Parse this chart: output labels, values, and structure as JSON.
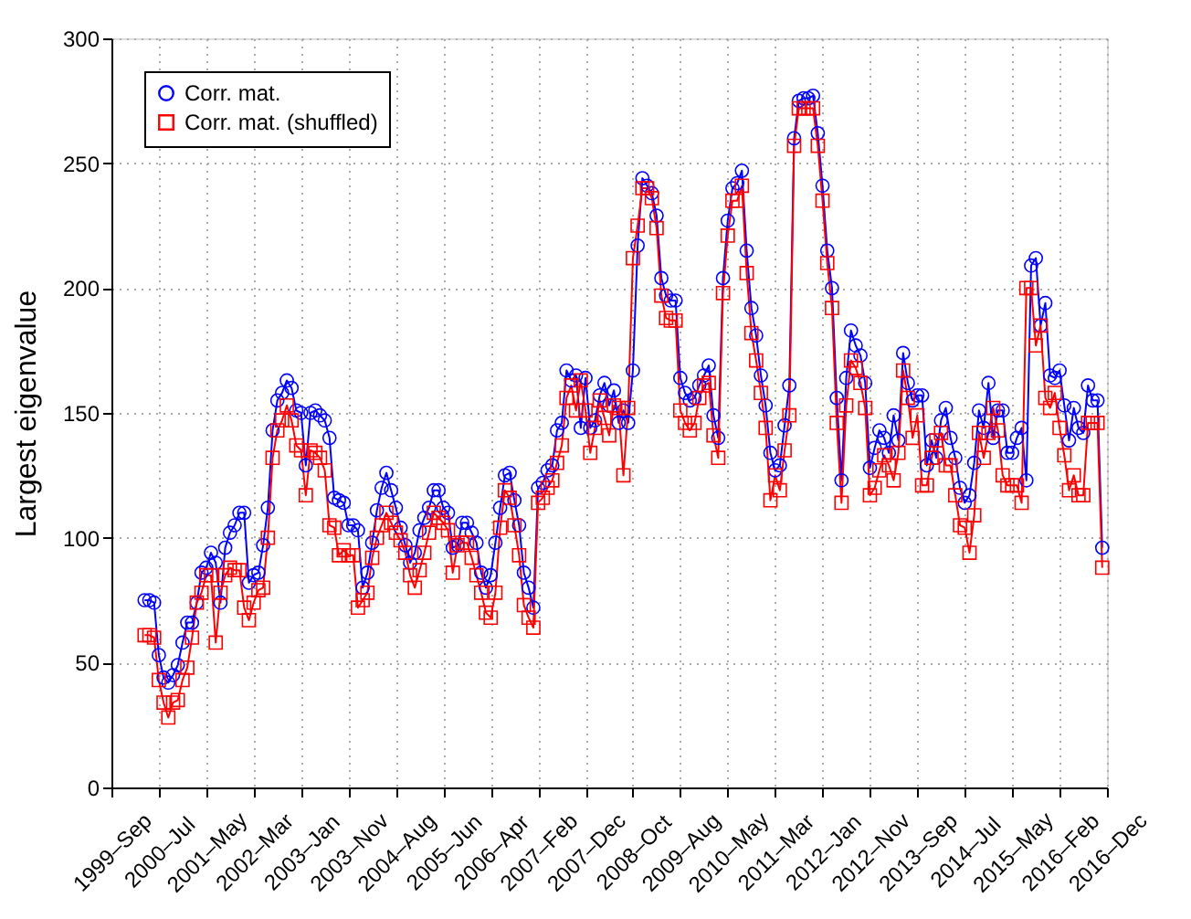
{
  "chart_data": {
    "type": "line",
    "ylabel": "Largest eigenvalue",
    "categories": [
      "1999–Sep",
      null,
      null,
      null,
      null,
      null,
      null,
      null,
      null,
      null,
      "2000–Jul",
      null,
      null,
      null,
      null,
      null,
      null,
      null,
      null,
      null,
      "2001–May",
      null,
      null,
      null,
      null,
      null,
      null,
      null,
      null,
      null,
      "2002–Mar",
      null,
      null,
      null,
      null,
      null,
      null,
      null,
      null,
      null,
      "2003–Jan",
      null,
      null,
      null,
      null,
      null,
      null,
      null,
      null,
      null,
      "2003–Nov",
      null,
      null,
      null,
      null,
      null,
      null,
      null,
      null,
      null,
      "2004–Aug",
      null,
      null,
      null,
      null,
      null,
      null,
      null,
      null,
      null,
      "2005–Jun",
      null,
      null,
      null,
      null,
      null,
      null,
      null,
      null,
      null,
      "2006–Apr",
      null,
      null,
      null,
      null,
      null,
      null,
      null,
      null,
      null,
      "2007–Feb",
      null,
      null,
      null,
      null,
      null,
      null,
      null,
      null,
      null,
      "2007–Dec",
      null,
      null,
      null,
      null,
      null,
      null,
      null,
      null,
      null,
      "2008–Oct",
      null,
      null,
      null,
      null,
      null,
      null,
      null,
      null,
      null,
      "2009–Aug",
      null,
      null,
      null,
      null,
      null,
      null,
      null,
      null,
      null,
      "2010–May",
      null,
      null,
      null,
      null,
      null,
      null,
      null,
      null,
      null,
      "2011–Mar",
      null,
      null,
      null,
      null,
      null,
      null,
      null,
      null,
      null,
      "2012–Jan",
      null,
      null,
      null,
      null,
      null,
      null,
      null,
      null,
      null,
      "2012–Nov",
      null,
      null,
      null,
      null,
      null,
      null,
      null,
      null,
      null,
      "2013–Sep",
      null,
      null,
      null,
      null,
      null,
      null,
      null,
      null,
      null,
      "2014–Jul",
      null,
      null,
      null,
      null,
      null,
      null,
      null,
      null,
      null,
      "2015–May",
      null,
      null,
      null,
      null,
      null,
      null,
      null,
      null,
      null,
      "2016–Feb",
      null,
      null,
      null,
      null,
      null,
      null,
      null,
      null,
      null,
      "2016–Dec"
    ],
    "series": [
      {
        "name": "Corr. mat.",
        "color": "#0000ff",
        "marker": "circle",
        "values": [
          null,
          null,
          null,
          null,
          null,
          null,
          null,
          75,
          75,
          74,
          53,
          44,
          42,
          45,
          49,
          58,
          66,
          66,
          74,
          86,
          88,
          94,
          90,
          74,
          96,
          102,
          105,
          110,
          110,
          82,
          85,
          86,
          97,
          112,
          143,
          155,
          158,
          163,
          160,
          151,
          150,
          129,
          150,
          151,
          149,
          147,
          140,
          116,
          115,
          114,
          105,
          105,
          103,
          80,
          86,
          98,
          111,
          120,
          126,
          119,
          112,
          104,
          97,
          90,
          94,
          103,
          108,
          112,
          119,
          119,
          112,
          110,
          96,
          97,
          106,
          106,
          102,
          98,
          86,
          80,
          85,
          98,
          112,
          125,
          126,
          115,
          105,
          86,
          80,
          72,
          120,
          122,
          127,
          129,
          143,
          146,
          167,
          163,
          165,
          144,
          164,
          144,
          147,
          157,
          162,
          153,
          159,
          146,
          151,
          146,
          167,
          217,
          244,
          241,
          238,
          229,
          204,
          197,
          195,
          195,
          164,
          158,
          155,
          156,
          161,
          165,
          169,
          149,
          140,
          204,
          227,
          240,
          242,
          247,
          215,
          192,
          181,
          165,
          153,
          134,
          127,
          129,
          145,
          161,
          260,
          275,
          276,
          276,
          277,
          262,
          241,
          215,
          200,
          156,
          123,
          164,
          183,
          177,
          173,
          162,
          128,
          136,
          143,
          140,
          134,
          149,
          139,
          174,
          162,
          155,
          157,
          157,
          129,
          139,
          132,
          147,
          152,
          140,
          132,
          120,
          114,
          117,
          130,
          151,
          144,
          162,
          140,
          151,
          151,
          134,
          134,
          140,
          144,
          123,
          209,
          212,
          185,
          194,
          165,
          164,
          167,
          153,
          139,
          152,
          144,
          142,
          161,
          155,
          155,
          96,
          null
        ]
      },
      {
        "name": "Corr. mat. (shuffled)",
        "color": "#ff0000",
        "marker": "square",
        "values": [
          null,
          null,
          null,
          null,
          null,
          null,
          null,
          61,
          61,
          60,
          43,
          34,
          28,
          34,
          35,
          43,
          48,
          60,
          74,
          78,
          85,
          85,
          58,
          78,
          85,
          88,
          87,
          87,
          72,
          67,
          74,
          79,
          80,
          100,
          132,
          143,
          147,
          153,
          147,
          137,
          135,
          117,
          135,
          134,
          132,
          127,
          105,
          104,
          93,
          95,
          93,
          93,
          72,
          75,
          78,
          92,
          100,
          105,
          110,
          106,
          102,
          99,
          94,
          85,
          80,
          87,
          94,
          102,
          110,
          108,
          106,
          103,
          86,
          97,
          98,
          98,
          92,
          85,
          78,
          70,
          68,
          78,
          104,
          119,
          116,
          105,
          93,
          73,
          68,
          64,
          114,
          116,
          120,
          123,
          130,
          137,
          156,
          161,
          151,
          163,
          151,
          134,
          144,
          155,
          148,
          141,
          153,
          152,
          125,
          152,
          212,
          225,
          240,
          240,
          236,
          224,
          197,
          188,
          187,
          187,
          151,
          146,
          143,
          146,
          156,
          161,
          162,
          141,
          132,
          198,
          221,
          235,
          235,
          241,
          206,
          182,
          171,
          158,
          144,
          115,
          125,
          119,
          135,
          149,
          257,
          272,
          272,
          272,
          272,
          257,
          235,
          210,
          192,
          146,
          114,
          153,
          171,
          168,
          162,
          152,
          117,
          120,
          127,
          133,
          129,
          123,
          134,
          167,
          156,
          140,
          149,
          121,
          121,
          132,
          139,
          142,
          129,
          129,
          117,
          105,
          104,
          94,
          109,
          142,
          132,
          142,
          152,
          143,
          125,
          121,
          121,
          121,
          114,
          200,
          200,
          177,
          185,
          156,
          152,
          158,
          144,
          133,
          119,
          125,
          117,
          117,
          146,
          146,
          146,
          88,
          null
        ]
      }
    ],
    "ylim": [
      0,
      300
    ],
    "yticks": [
      0,
      50,
      100,
      150,
      200,
      250,
      300
    ],
    "grid": true,
    "legend": "top left",
    "line_style": "solid"
  }
}
